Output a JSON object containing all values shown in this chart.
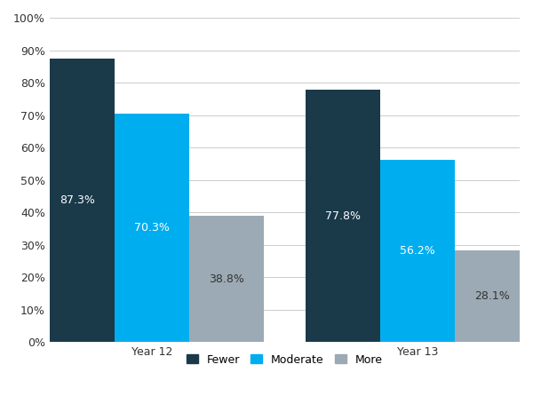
{
  "groups": [
    "Year 12",
    "Year 13"
  ],
  "series": [
    "Fewer",
    "Moderate",
    "More"
  ],
  "values": {
    "Year 12": [
      87.3,
      70.3,
      38.8
    ],
    "Year 13": [
      77.8,
      56.2,
      28.1
    ]
  },
  "colors": [
    "#1a3a4a",
    "#00aeef",
    "#9baab4"
  ],
  "bar_labels": {
    "Year 12": [
      "87.3%",
      "70.3%",
      "38.8%"
    ],
    "Year 13": [
      "77.8%",
      "56.2%",
      "28.1%"
    ]
  },
  "label_colors": [
    "#ffffff",
    "#ffffff",
    "#333333"
  ],
  "ylim": [
    0,
    100
  ],
  "yticks": [
    0,
    10,
    20,
    30,
    40,
    50,
    60,
    70,
    80,
    90,
    100
  ],
  "yticklabels": [
    "0%",
    "10%",
    "20%",
    "30%",
    "40%",
    "50%",
    "60%",
    "70%",
    "80%",
    "90%",
    "100%"
  ],
  "background_color": "#ffffff",
  "grid_color": "#cccccc",
  "label_fontsize": 9,
  "tick_fontsize": 9,
  "legend_fontsize": 9,
  "bar_width": 0.27,
  "group_centers": [
    0.42,
    1.38
  ]
}
